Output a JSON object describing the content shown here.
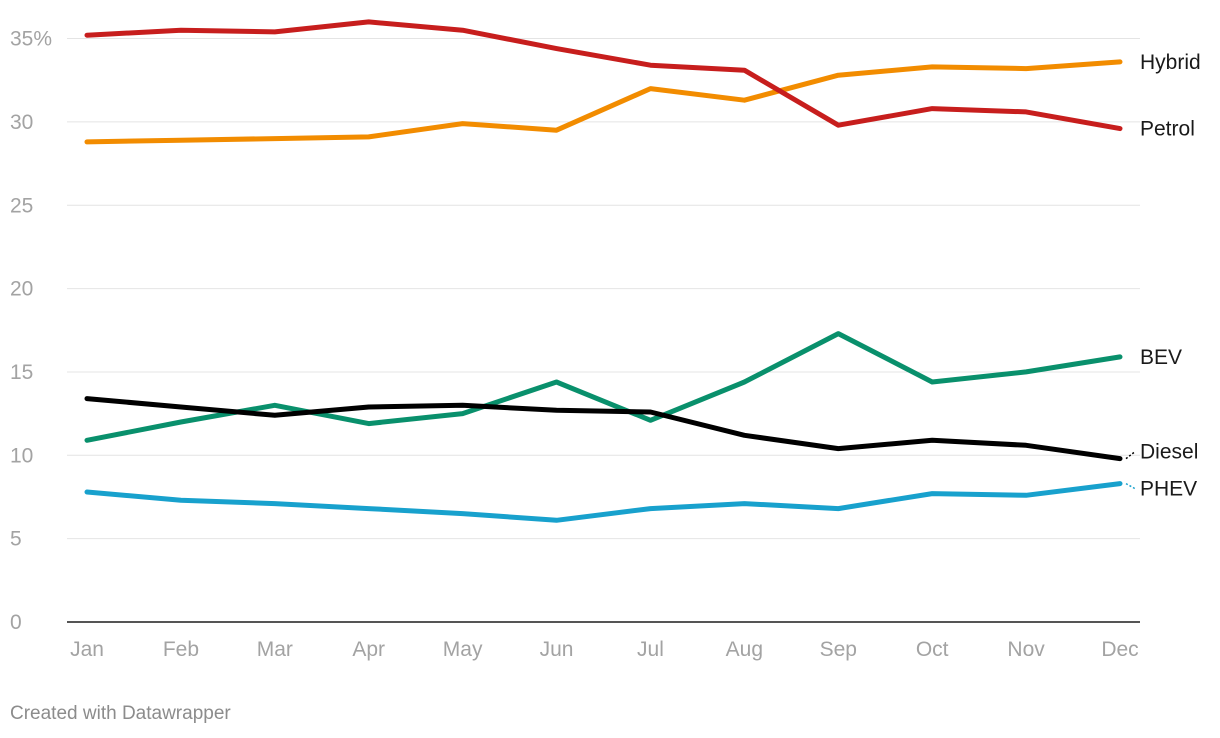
{
  "footer": {
    "credit": "Created with Datawrapper"
  },
  "chart_data": {
    "type": "line",
    "title": "",
    "xlabel": "",
    "ylabel": "",
    "ylim": [
      0,
      36
    ],
    "y_ticks": [
      {
        "value": 0,
        "label": "0"
      },
      {
        "value": 5,
        "label": "5"
      },
      {
        "value": 10,
        "label": "10"
      },
      {
        "value": 15,
        "label": "15"
      },
      {
        "value": 20,
        "label": "20"
      },
      {
        "value": 25,
        "label": "25"
      },
      {
        "value": 30,
        "label": "30"
      },
      {
        "value": 35,
        "label": "35%"
      }
    ],
    "categories": [
      "Jan",
      "Feb",
      "Mar",
      "Apr",
      "May",
      "Jun",
      "Jul",
      "Aug",
      "Sep",
      "Oct",
      "Nov",
      "Dec"
    ],
    "grid": true,
    "legend": "direct labels at right end of lines",
    "series": [
      {
        "name": "Hybrid",
        "color": "#f28c00",
        "values": [
          28.8,
          28.9,
          29.0,
          29.1,
          29.9,
          29.5,
          32.0,
          31.3,
          32.8,
          33.3,
          33.2,
          33.6
        ]
      },
      {
        "name": "Petrol",
        "color": "#c71e1d",
        "values": [
          35.2,
          35.5,
          35.4,
          36.0,
          35.5,
          34.4,
          33.4,
          33.1,
          29.8,
          30.8,
          30.6,
          29.6
        ]
      },
      {
        "name": "BEV",
        "color": "#09906c",
        "values": [
          10.9,
          12.0,
          13.0,
          11.9,
          12.5,
          14.4,
          12.1,
          14.4,
          17.3,
          14.4,
          15.0,
          15.9
        ]
      },
      {
        "name": "Diesel",
        "color": "#000000",
        "values": [
          13.4,
          12.9,
          12.4,
          12.9,
          13.0,
          12.7,
          12.6,
          11.2,
          10.4,
          10.9,
          10.6,
          9.8
        ]
      },
      {
        "name": "PHEV",
        "color": "#18a1cd",
        "values": [
          7.8,
          7.3,
          7.1,
          6.8,
          6.5,
          6.1,
          6.8,
          7.1,
          6.8,
          7.7,
          7.6,
          8.3
        ]
      }
    ]
  }
}
